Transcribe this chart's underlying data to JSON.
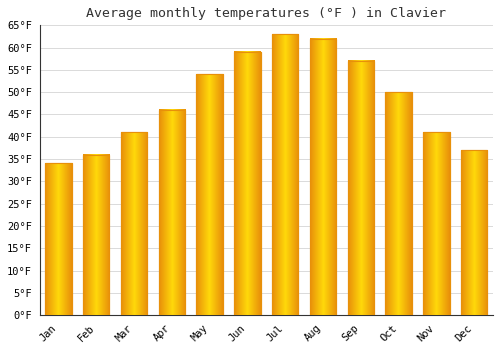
{
  "title": "Average monthly temperatures (°F ) in Clavier",
  "months": [
    "Jan",
    "Feb",
    "Mar",
    "Apr",
    "May",
    "Jun",
    "Jul",
    "Aug",
    "Sep",
    "Oct",
    "Nov",
    "Dec"
  ],
  "values": [
    34.0,
    36.0,
    41.0,
    46.0,
    54.0,
    59.0,
    63.0,
    62.0,
    57.0,
    50.0,
    41.0,
    37.0
  ],
  "bar_color_main": "#FFA500",
  "bar_color_light": "#FFD966",
  "bar_color_dark": "#E8900A",
  "ylim": [
    0,
    65
  ],
  "yticks": [
    0,
    5,
    10,
    15,
    20,
    25,
    30,
    35,
    40,
    45,
    50,
    55,
    60,
    65
  ],
  "background_color": "#FFFFFF",
  "plot_bg_color": "#FFFFFF",
  "grid_color": "#CCCCCC",
  "title_fontsize": 9.5,
  "tick_fontsize": 7.5,
  "font_family": "monospace",
  "bar_width": 0.7
}
